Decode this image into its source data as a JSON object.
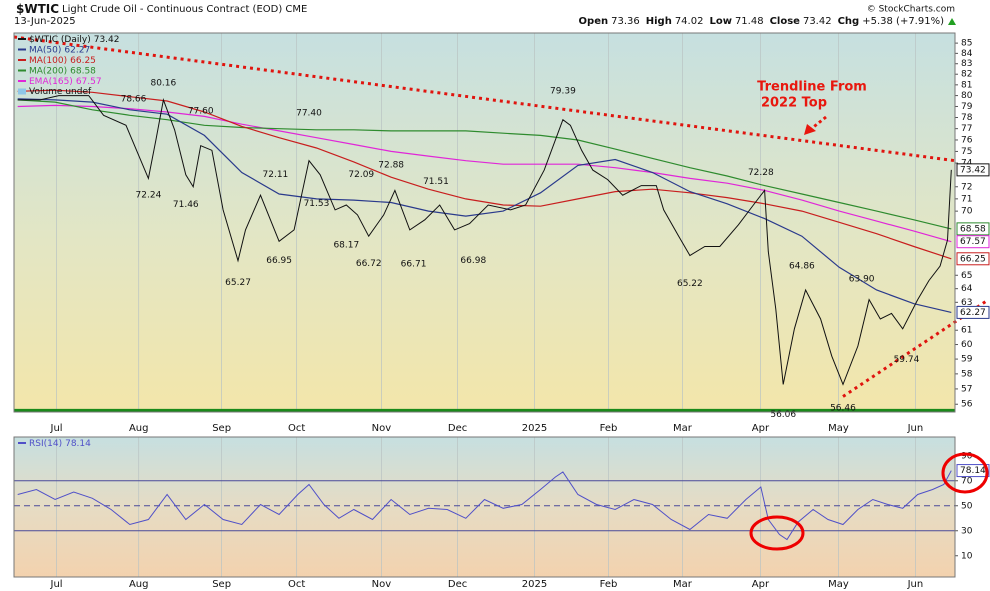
{
  "chart_data": [
    {
      "type": "line",
      "symbol": "$WTIC",
      "title": "Light Crude Oil - Continuous Contract (EOD) CME",
      "date": "13-Jun-2025",
      "source": "© StockCharts.com",
      "quote": [
        {
          "label": "Open",
          "value": 73.36
        },
        {
          "label": "High",
          "value": 74.02
        },
        {
          "label": "Low",
          "value": 71.48
        },
        {
          "label": "Close",
          "value": 73.42
        },
        {
          "label": "Chg",
          "value": 5.38,
          "value_label": "+5.38 (+7.91%)"
        }
      ],
      "log_scale": true,
      "grid": "vertical",
      "xlim": [
        -1,
        251
      ],
      "ylim": [
        55.5,
        86
      ],
      "xticks": [
        {
          "value": 10.4,
          "label": "Jul"
        },
        {
          "value": 32.4,
          "label": "Aug"
        },
        {
          "value": 54.6,
          "label": "Sep"
        },
        {
          "value": 74.7,
          "label": "Oct"
        },
        {
          "value": 97.4,
          "label": "Nov"
        },
        {
          "value": 117.8,
          "label": "Dec"
        },
        {
          "value": 138.4,
          "label": "2025"
        },
        {
          "value": 158.2,
          "label": "Feb"
        },
        {
          "value": 178,
          "label": "Mar"
        },
        {
          "value": 198.9,
          "label": "Apr"
        },
        {
          "value": 219.8,
          "label": "May"
        },
        {
          "value": 240.4,
          "label": "Jun"
        }
      ],
      "yticks": [
        56,
        57,
        58,
        59,
        60,
        61,
        63,
        64,
        65,
        70,
        71,
        72,
        74,
        75,
        76,
        77,
        78,
        79,
        80,
        81,
        82,
        83,
        84,
        85
      ],
      "series": [
        {
          "name": "$WTIC (Daily)",
          "color": "#111111",
          "width": 1,
          "x": [
            0,
            6,
            11,
            19,
            23,
            29,
            35,
            37,
            39,
            42,
            45,
            47,
            49,
            52,
            55,
            59,
            61,
            65,
            70,
            74,
            78,
            81,
            85,
            88,
            91,
            94,
            98,
            101,
            105,
            109,
            113,
            117,
            121,
            126,
            132,
            136,
            141,
            146,
            148,
            151,
            154,
            158,
            162,
            167,
            171,
            173,
            177,
            180,
            184,
            188,
            193,
            197,
            200,
            201,
            203,
            205,
            208,
            211,
            215,
            218,
            221,
            225,
            228,
            231,
            234,
            237,
            241,
            244,
            247,
            249,
            250
          ],
          "values": [
            79.6,
            79.6,
            80.0,
            80.0,
            78.2,
            77.3,
            72.7,
            76.0,
            79.6,
            76.9,
            73.0,
            72.0,
            75.5,
            75.1,
            70.1,
            66.1,
            68.5,
            71.3,
            67.6,
            68.5,
            74.2,
            73.0,
            70.1,
            70.5,
            69.7,
            68.0,
            69.7,
            71.7,
            68.5,
            69.3,
            70.5,
            68.5,
            69.0,
            70.5,
            70.1,
            70.5,
            73.4,
            77.8,
            77.3,
            75.1,
            73.4,
            72.6,
            71.3,
            72.1,
            72.1,
            70.1,
            68.0,
            66.5,
            67.2,
            67.2,
            68.9,
            70.5,
            71.7,
            66.8,
            62.5,
            57.3,
            61.1,
            63.9,
            61.8,
            59.2,
            57.3,
            59.9,
            63.2,
            61.8,
            62.2,
            61.1,
            63.2,
            64.6,
            65.7,
            67.7,
            73.42
          ]
        },
        {
          "name": "MA(50)",
          "color": "#2a3a8c",
          "width": 1.2,
          "x": [
            0,
            10,
            20,
            30,
            40,
            50,
            60,
            70,
            80,
            90,
            100,
            110,
            120,
            130,
            140,
            150,
            160,
            170,
            180,
            190,
            200,
            210,
            220,
            230,
            240,
            250
          ],
          "values": [
            79.7,
            79.6,
            79.4,
            78.7,
            78.3,
            76.4,
            73.2,
            71.4,
            71.0,
            70.9,
            70.7,
            70.0,
            69.6,
            70.0,
            71.5,
            73.8,
            74.3,
            73.2,
            71.6,
            70.6,
            69.4,
            68.0,
            65.6,
            63.9,
            62.9,
            62.27
          ]
        },
        {
          "name": "MA(100)",
          "color": "#c81e1e",
          "width": 1.2,
          "x": [
            0,
            10,
            20,
            30,
            40,
            50,
            60,
            70,
            80,
            90,
            100,
            110,
            120,
            130,
            140,
            150,
            160,
            170,
            180,
            190,
            200,
            210,
            220,
            230,
            240,
            250
          ],
          "values": [
            80.4,
            80.5,
            80.3,
            79.9,
            79.5,
            78.5,
            77.2,
            76.2,
            75.3,
            74.1,
            72.8,
            71.8,
            71.0,
            70.5,
            70.4,
            71.0,
            71.6,
            71.8,
            71.5,
            71.1,
            70.6,
            70.0,
            69.1,
            68.2,
            67.2,
            66.25
          ]
        },
        {
          "name": "MA(200)",
          "color": "#2e8b2e",
          "width": 1.2,
          "x": [
            0,
            10,
            20,
            30,
            40,
            50,
            60,
            70,
            80,
            90,
            100,
            110,
            120,
            130,
            140,
            150,
            160,
            170,
            180,
            190,
            200,
            210,
            220,
            230,
            240,
            250
          ],
          "values": [
            79.6,
            79.4,
            78.7,
            78.2,
            77.8,
            77.3,
            77.1,
            77.0,
            76.9,
            76.9,
            76.8,
            76.8,
            76.8,
            76.6,
            76.4,
            76.0,
            75.2,
            74.4,
            73.6,
            72.9,
            72.1,
            71.4,
            70.7,
            70.0,
            69.3,
            68.58
          ]
        },
        {
          "name": "EMA(165)",
          "color": "#e026d8",
          "width": 1.2,
          "x": [
            0,
            10,
            20,
            30,
            40,
            50,
            60,
            70,
            80,
            90,
            100,
            110,
            120,
            130,
            140,
            150,
            160,
            170,
            180,
            190,
            200,
            210,
            220,
            230,
            240,
            250
          ],
          "values": [
            79.0,
            79.1,
            79.0,
            78.8,
            78.5,
            78.1,
            77.4,
            76.8,
            76.2,
            75.6,
            75.0,
            74.6,
            74.2,
            73.9,
            73.9,
            73.9,
            73.6,
            73.2,
            72.7,
            72.3,
            71.7,
            70.9,
            70.0,
            69.2,
            68.4,
            67.57
          ]
        }
      ],
      "legend_extra": "Volume undef",
      "trendlines": [
        {
          "color": "#e0140e",
          "style": "dotted",
          "x": [
            -1,
            251
          ],
          "values": [
            85.6,
            74.2
          ]
        },
        {
          "color": "#e0140e",
          "style": "dotted",
          "x": [
            221,
            260
          ],
          "values": [
            56.5,
            63.2
          ]
        },
        {
          "color": "#1a8a1a",
          "style": "solid",
          "x": [
            -1,
            251
          ],
          "values": [
            55.6,
            55.6
          ]
        }
      ],
      "annotations": [
        {
          "x": 31,
          "value": 78.66,
          "position": "above"
        },
        {
          "x": 39,
          "value": 80.16,
          "position": "above"
        },
        {
          "x": 49,
          "value": 77.6,
          "label": "77.60",
          "position": "above"
        },
        {
          "x": 35,
          "value": 72.24,
          "position": "below"
        },
        {
          "x": 45,
          "value": 71.46,
          "position": "below"
        },
        {
          "x": 59,
          "value": 65.27,
          "position": "below"
        },
        {
          "x": 70,
          "value": 66.95,
          "position": "below"
        },
        {
          "x": 69,
          "value": 72.11,
          "position": "above"
        },
        {
          "x": 78,
          "value": 77.4,
          "label": "77.40",
          "position": "above"
        },
        {
          "x": 80,
          "value": 71.53,
          "position": "below"
        },
        {
          "x": 88,
          "value": 68.17,
          "position": "below"
        },
        {
          "x": 92,
          "value": 72.09,
          "position": "above"
        },
        {
          "x": 100,
          "value": 72.88,
          "position": "above"
        },
        {
          "x": 94,
          "value": 66.72,
          "position": "below"
        },
        {
          "x": 112,
          "value": 71.51,
          "position": "above"
        },
        {
          "x": 106,
          "value": 66.71,
          "position": "below"
        },
        {
          "x": 122,
          "value": 66.98,
          "position": "below"
        },
        {
          "x": 146,
          "value": 79.39,
          "position": "above"
        },
        {
          "x": 199,
          "value": 72.28,
          "position": "above"
        },
        {
          "x": 180,
          "value": 65.22,
          "position": "below"
        },
        {
          "x": 210,
          "value": 64.86,
          "position": "above"
        },
        {
          "x": 226,
          "value": 63.9,
          "label": "63.90",
          "position": "above"
        },
        {
          "x": 205,
          "value": 56.06,
          "position": "below"
        },
        {
          "x": 221,
          "value": 56.46,
          "position": "below"
        },
        {
          "x": 238,
          "value": 59.74,
          "position": "below"
        }
      ],
      "callout": [
        "Trendline From",
        "2022 Top"
      ]
    },
    {
      "type": "line",
      "log_scale": false,
      "grid": "vertical",
      "xlim": [
        -1,
        251
      ],
      "ylim": [
        -7,
        105
      ],
      "xticks": [
        {
          "value": 10.4,
          "label": "Jul"
        },
        {
          "value": 32.4,
          "label": "Aug"
        },
        {
          "value": 54.6,
          "label": "Sep"
        },
        {
          "value": 74.7,
          "label": "Oct"
        },
        {
          "value": 97.4,
          "label": "Nov"
        },
        {
          "value": 117.8,
          "label": "Dec"
        },
        {
          "value": 138.4,
          "label": "2025"
        },
        {
          "value": 158.2,
          "label": "Feb"
        },
        {
          "value": 178,
          "label": "Mar"
        },
        {
          "value": 198.9,
          "label": "Apr"
        },
        {
          "value": 219.8,
          "label": "May"
        },
        {
          "value": 240.4,
          "label": "Jun"
        }
      ],
      "yticks": [
        10,
        30,
        50,
        70,
        90
      ],
      "hlines": [
        {
          "value": 70,
          "style": "solid"
        },
        {
          "value": 50,
          "style": "dashed"
        },
        {
          "value": 30,
          "style": "solid"
        }
      ],
      "series": [
        {
          "name": "RSI(14)",
          "color": "#5050c8",
          "width": 1,
          "x": [
            0,
            5,
            10,
            15,
            20,
            25,
            30,
            35,
            40,
            45,
            50,
            55,
            60,
            65,
            70,
            75,
            78,
            82,
            86,
            90,
            95,
            100,
            105,
            110,
            115,
            120,
            125,
            130,
            135,
            140,
            144,
            146,
            150,
            155,
            160,
            165,
            170,
            175,
            180,
            185,
            190,
            195,
            199,
            201,
            204,
            206,
            209,
            213,
            217,
            221,
            225,
            229,
            233,
            237,
            241,
            245,
            248,
            250
          ],
          "values": [
            59,
            63,
            55,
            61,
            56,
            47,
            35,
            39,
            59,
            39,
            51,
            39,
            35,
            51,
            43,
            59,
            67,
            51,
            40,
            47,
            39,
            55,
            43,
            48,
            47,
            40,
            55,
            48,
            51,
            63,
            73,
            77,
            59,
            51,
            47,
            55,
            51,
            39,
            31,
            43,
            40,
            55,
            65,
            39,
            27,
            23,
            37,
            47,
            39,
            35,
            47,
            55,
            51,
            48,
            59,
            63,
            67,
            78.14
          ]
        }
      ]
    }
  ]
}
